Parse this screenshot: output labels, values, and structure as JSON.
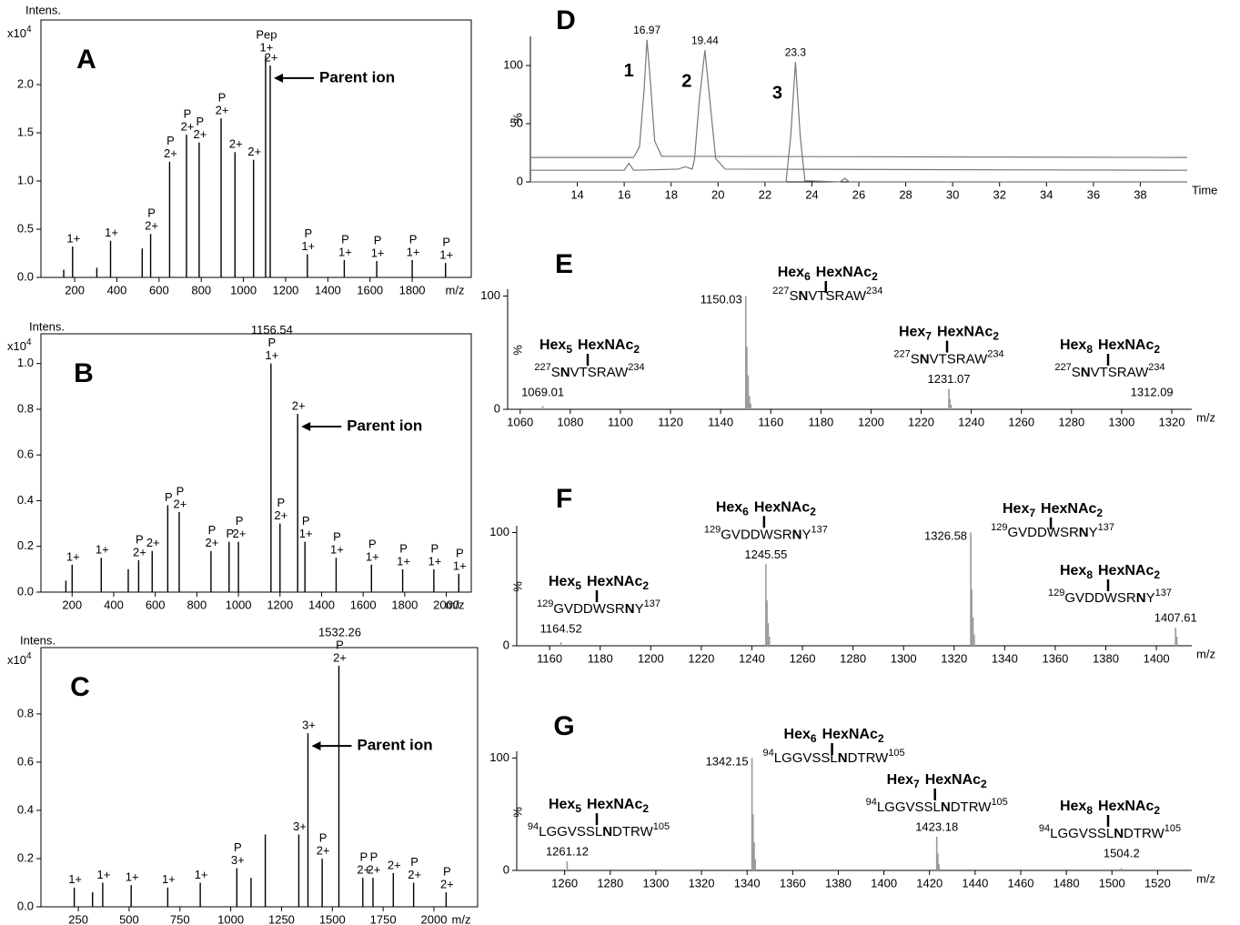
{
  "chart_data": [
    {
      "type": "spectrum",
      "panel": "A",
      "frame": true,
      "color": "#000000",
      "ylabel": "Intens.",
      "y_scale": "x10",
      "y_scale_exp": 4,
      "xlabel": "m/z",
      "xlim": [
        40,
        2080
      ],
      "ylim": [
        0,
        2.67
      ],
      "xticks": [
        200,
        400,
        600,
        800,
        1000,
        1200,
        1400,
        1600,
        1800
      ],
      "yticks": [
        {
          "value": 0,
          "label": "0.0"
        },
        0.5,
        {
          "value": 1,
          "label": "1.0"
        },
        1.5,
        {
          "value": 2,
          "label": "2.0"
        }
      ],
      "peaks": [
        {
          "x": 148,
          "value": 0.08
        },
        {
          "x": 190,
          "value": 0.32,
          "charge": "1+"
        },
        {
          "x": 305,
          "value": 0.1
        },
        {
          "x": 370,
          "value": 0.38,
          "charge": "1+"
        },
        {
          "x": 520,
          "value": 0.3
        },
        {
          "x": 560,
          "value": 0.45,
          "charge": "2+",
          "tag": "P"
        },
        {
          "x": 650,
          "value": 1.2,
          "charge": "2+",
          "tag": "P"
        },
        {
          "x": 730,
          "value": 1.48,
          "charge": "2+",
          "tag": "P"
        },
        {
          "x": 790,
          "value": 1.4,
          "charge": "2+",
          "tag": "P"
        },
        {
          "x": 894,
          "value": 1.65,
          "charge": "2+",
          "tag": "P"
        },
        {
          "x": 960,
          "value": 1.3,
          "charge": "2+"
        },
        {
          "x": 1048,
          "value": 1.22,
          "charge": "2+"
        },
        {
          "x": 1105,
          "value": 2.3,
          "charge": "1+",
          "tag": "Pep"
        },
        {
          "x": 1127,
          "value": 2.2,
          "charge": "2+",
          "note": "Parent ion"
        },
        {
          "x": 1303,
          "value": 0.24,
          "charge": "1+",
          "tag": "P"
        },
        {
          "x": 1478,
          "value": 0.18,
          "charge": "1+",
          "tag": "P"
        },
        {
          "x": 1632,
          "value": 0.17,
          "charge": "1+",
          "tag": "P"
        },
        {
          "x": 1800,
          "value": 0.18,
          "charge": "1+",
          "tag": "P"
        },
        {
          "x": 1958,
          "value": 0.15,
          "charge": "1+",
          "tag": "P"
        }
      ]
    },
    {
      "type": "spectrum",
      "panel": "B",
      "frame": true,
      "color": "#000000",
      "ylabel": "Intens.",
      "y_scale": "x10",
      "y_scale_exp": 4,
      "xlabel": "m/z",
      "xlim": [
        50,
        2120
      ],
      "ylim": [
        0,
        1.13
      ],
      "xticks": [
        200,
        400,
        600,
        800,
        1000,
        1200,
        1400,
        1600,
        1800,
        2000
      ],
      "yticks": [
        {
          "value": 0,
          "label": "0.0"
        },
        0.2,
        0.4,
        0.6,
        0.8,
        {
          "value": 1,
          "label": "1.0"
        }
      ],
      "peaks": [
        {
          "x": 170,
          "value": 0.05
        },
        {
          "x": 200,
          "value": 0.12,
          "charge": "1+"
        },
        {
          "x": 340,
          "value": 0.15,
          "charge": "1+"
        },
        {
          "x": 470,
          "value": 0.1
        },
        {
          "x": 520,
          "value": 0.14,
          "charge": "2+",
          "tag": "P"
        },
        {
          "x": 585,
          "value": 0.18,
          "charge": "2+"
        },
        {
          "x": 660,
          "value": 0.38,
          "tag": "P"
        },
        {
          "x": 715,
          "value": 0.35,
          "charge": "2+",
          "tag": "P"
        },
        {
          "x": 868,
          "value": 0.18,
          "charge": "2+",
          "tag": "P"
        },
        {
          "x": 955,
          "value": 0.22,
          "tag": "P"
        },
        {
          "x": 1000,
          "value": 0.22,
          "charge": "2+",
          "tag": "P"
        },
        {
          "x": 1156.54,
          "value": 1.0,
          "charge": "1+",
          "tag": "P",
          "mz_label": "1156.54"
        },
        {
          "x": 1200,
          "value": 0.3,
          "charge": "2+",
          "tag": "P"
        },
        {
          "x": 1285,
          "value": 0.78,
          "charge": "2+",
          "note": "Parent ion"
        },
        {
          "x": 1320,
          "value": 0.22,
          "charge": "1+",
          "tag": "P"
        },
        {
          "x": 1470,
          "value": 0.15,
          "charge": "1+",
          "tag": "P"
        },
        {
          "x": 1640,
          "value": 0.12,
          "charge": "1+",
          "tag": "P"
        },
        {
          "x": 1790,
          "value": 0.1,
          "charge": "1+",
          "tag": "P"
        },
        {
          "x": 1940,
          "value": 0.1,
          "charge": "1+",
          "tag": "P"
        },
        {
          "x": 2060,
          "value": 0.08,
          "charge": "1+",
          "tag": "P"
        }
      ]
    },
    {
      "type": "spectrum",
      "panel": "C",
      "frame": true,
      "color": "#000000",
      "ylabel": "Intens.",
      "y_scale": "x10",
      "y_scale_exp": 4,
      "xlabel": "m/z",
      "xlim": [
        66,
        2215
      ],
      "ylim": [
        0,
        1.075
      ],
      "xticks": [
        250,
        500,
        750,
        1000,
        1250,
        1500,
        1750,
        2000
      ],
      "yticks": [
        {
          "value": 0,
          "label": "0.0"
        },
        0.2,
        0.4,
        0.6,
        0.8
      ],
      "peaks": [
        {
          "x": 230,
          "value": 0.08,
          "charge": "1+"
        },
        {
          "x": 320,
          "value": 0.06
        },
        {
          "x": 370,
          "value": 0.1,
          "charge": "1+"
        },
        {
          "x": 510,
          "value": 0.09,
          "charge": "1+"
        },
        {
          "x": 690,
          "value": 0.08,
          "charge": "1+"
        },
        {
          "x": 850,
          "value": 0.1,
          "charge": "1+"
        },
        {
          "x": 1030,
          "value": 0.16,
          "charge": "3+",
          "tag": "P"
        },
        {
          "x": 1100,
          "value": 0.12
        },
        {
          "x": 1170,
          "value": 0.3
        },
        {
          "x": 1335,
          "value": 0.3,
          "charge": "3+"
        },
        {
          "x": 1380,
          "value": 0.72,
          "charge": "3+",
          "note": "Parent ion"
        },
        {
          "x": 1450,
          "value": 0.2,
          "charge": "2+",
          "tag": "P"
        },
        {
          "x": 1532.26,
          "value": 1.0,
          "charge": "2+",
          "tag": "P",
          "mz_label": "1532.26"
        },
        {
          "x": 1650,
          "value": 0.12,
          "charge": "2+",
          "tag": "P"
        },
        {
          "x": 1700,
          "value": 0.12,
          "charge": "2+",
          "tag": "P"
        },
        {
          "x": 1800,
          "value": 0.14,
          "charge": "2+"
        },
        {
          "x": 1900,
          "value": 0.1,
          "charge": "2+",
          "tag": "P"
        },
        {
          "x": 2060,
          "value": 0.06,
          "charge": "2+",
          "tag": "P"
        }
      ]
    },
    {
      "type": "line",
      "panel": "D",
      "frame": false,
      "color": "#777777",
      "ylabel": "%",
      "xlabel": "Time",
      "xlim": [
        12,
        40
      ],
      "ylim": [
        0,
        125
      ],
      "xticks": [
        14,
        16,
        18,
        20,
        22,
        24,
        26,
        28,
        30,
        32,
        34,
        36,
        38
      ],
      "yticks": [
        0,
        50,
        100
      ],
      "series": [
        {
          "name": "1",
          "peak": 16.97,
          "x": [
            12,
            16.4,
            16.65,
            16.85,
            16.97,
            17.1,
            17.3,
            17.6,
            40
          ],
          "values": [
            21,
            21,
            30,
            80,
            122,
            90,
            35,
            22,
            21
          ]
        },
        {
          "name": "2",
          "peak": 19.44,
          "x": [
            12,
            16.0,
            16.2,
            16.4,
            18.3,
            18.6,
            18.9,
            19.0,
            19.2,
            19.44,
            19.65,
            19.9,
            20.3,
            40
          ],
          "values": [
            10,
            10,
            16,
            10,
            11,
            13,
            11,
            20,
            70,
            113,
            70,
            20,
            11,
            10
          ]
        },
        {
          "name": "3",
          "peak": 23.3,
          "x": [
            12,
            22.9,
            23.1,
            23.3,
            23.5,
            23.7,
            25.2,
            25.4,
            25.6,
            40
          ],
          "values": [
            0,
            0,
            40,
            103,
            40,
            1,
            0,
            3,
            0,
            0
          ]
        }
      ]
    },
    {
      "type": "glyco",
      "panel": "E",
      "frame": false,
      "color": "#999999",
      "ylabel": "%",
      "xlabel": "m/z",
      "xlim": [
        1055,
        1328
      ],
      "ylim": [
        0,
        106
      ],
      "xticks": [
        1060,
        1080,
        1100,
        1120,
        1140,
        1160,
        1180,
        1200,
        1220,
        1240,
        1260,
        1280,
        1300,
        1320
      ],
      "yticks": [
        0,
        100
      ],
      "hex": "Hex",
      "hexnac": "HexNAc",
      "peptide": {
        "start": "227",
        "pre": "S",
        "site": "N",
        "post": "VTSRAW",
        "end": "234"
      },
      "peaks": [
        {
          "x": 1069.01,
          "value": 3,
          "hex_count": 5,
          "hexnac_count": 2
        },
        {
          "x": 1150.03,
          "value": 100,
          "hex_count": 6,
          "hexnac_count": 2
        },
        {
          "x": 1231.07,
          "value": 18,
          "hex_count": 7,
          "hexnac_count": 2
        },
        {
          "x": 1312.09,
          "value": 1,
          "hex_count": 8,
          "hexnac_count": 2
        }
      ],
      "isotopes": {
        "x": [
          1150.5,
          1151.0,
          1151.5,
          1152.0,
          1231.5,
          1232.0
        ],
        "values": [
          55,
          30,
          12,
          5,
          9,
          4
        ]
      }
    },
    {
      "type": "glyco",
      "panel": "F",
      "frame": false,
      "color": "#999999",
      "ylabel": "%",
      "xlabel": "m/z",
      "xlim": [
        1147,
        1414
      ],
      "ylim": [
        0,
        106
      ],
      "xticks": [
        1160,
        1180,
        1200,
        1220,
        1240,
        1260,
        1280,
        1300,
        1320,
        1340,
        1360,
        1380,
        1400
      ],
      "yticks": [
        0,
        100
      ],
      "hex": "Hex",
      "hexnac": "HexNAc",
      "peptide": {
        "start": "129",
        "pre": "GVDDWSR",
        "site": "N",
        "post": "Y",
        "end": "137"
      },
      "peaks": [
        {
          "x": 1164.52,
          "value": 3,
          "hex_count": 5,
          "hexnac_count": 2
        },
        {
          "x": 1245.55,
          "value": 72,
          "hex_count": 6,
          "hexnac_count": 2
        },
        {
          "x": 1326.58,
          "value": 100,
          "hex_count": 7,
          "hexnac_count": 2
        },
        {
          "x": 1407.61,
          "value": 16,
          "hex_count": 8,
          "hexnac_count": 2
        }
      ],
      "isotopes": {
        "x": [
          1246.0,
          1246.5,
          1247.0,
          1327.0,
          1327.5,
          1328.0,
          1408.1
        ],
        "values": [
          40,
          20,
          8,
          50,
          25,
          10,
          8
        ]
      }
    },
    {
      "type": "glyco",
      "panel": "G",
      "frame": false,
      "color": "#999999",
      "ylabel": "%",
      "xlabel": "m/z",
      "xlim": [
        1239,
        1535
      ],
      "ylim": [
        0,
        106
      ],
      "xticks": [
        1260,
        1280,
        1300,
        1320,
        1340,
        1360,
        1380,
        1400,
        1420,
        1440,
        1460,
        1480,
        1500,
        1520
      ],
      "yticks": [
        0,
        100
      ],
      "hex": "Hex",
      "hexnac": "HexNAc",
      "peptide": {
        "start": "94",
        "pre": "LGGVSSL",
        "site": "N",
        "post": "DTRW",
        "end": "105"
      },
      "peaks": [
        {
          "x": 1261.12,
          "value": 8,
          "hex_count": 5,
          "hexnac_count": 2
        },
        {
          "x": 1342.15,
          "value": 100,
          "hex_count": 6,
          "hexnac_count": 2
        },
        {
          "x": 1423.18,
          "value": 30,
          "hex_count": 7,
          "hexnac_count": 2
        },
        {
          "x": 1504.2,
          "value": 2,
          "hex_count": 8,
          "hexnac_count": 2
        }
      ],
      "isotopes": {
        "x": [
          1342.65,
          1343.15,
          1343.65,
          1423.68,
          1424.18
        ],
        "values": [
          50,
          25,
          10,
          15,
          6
        ]
      }
    }
  ]
}
